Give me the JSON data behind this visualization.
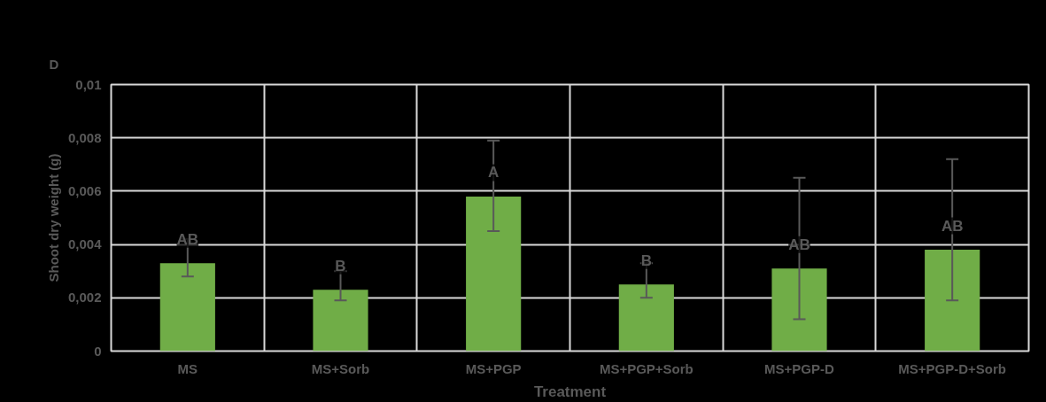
{
  "chart_data": {
    "type": "bar",
    "title": "D",
    "xlabel": "Treatment",
    "ylabel": "Shoot dry weight (g)",
    "categories": [
      "MS",
      "MS+Sorb",
      "MS+PGP",
      "MS+PGP+Sorb",
      "MS+PGP-D",
      "MS+PGP-D+Sorb"
    ],
    "values": [
      0.0033,
      0.0023,
      0.0058,
      0.0025,
      0.0031,
      0.0038
    ],
    "errors": [
      [
        0.0028,
        0.0042
      ],
      [
        0.0019,
        0.003
      ],
      [
        0.0045,
        0.0079
      ],
      [
        0.002,
        0.0033
      ],
      [
        0.0012,
        0.0065
      ],
      [
        0.0019,
        0.0072
      ]
    ],
    "color": "#70ad47",
    "ylim": [
      0,
      0.01
    ],
    "yticks": [
      {
        "value": 0,
        "label": "0"
      },
      {
        "value": 0.002,
        "label": "0,002"
      },
      {
        "value": 0.004,
        "label": "0,004"
      },
      {
        "value": 0.006,
        "label": "0,006"
      },
      {
        "value": 0.008,
        "label": "0,008"
      },
      {
        "value": 0.01,
        "label": "0,01"
      }
    ],
    "grid": true,
    "annotations": [
      "AB",
      "B",
      "A",
      "B",
      "AB",
      "AB"
    ]
  }
}
